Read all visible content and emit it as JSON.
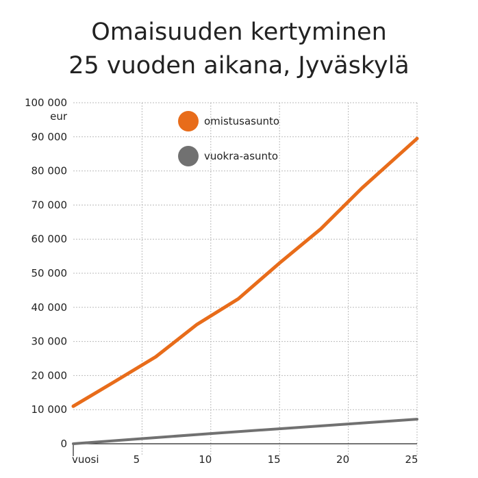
{
  "title_lines": [
    "Omaisuuden kertyminen",
    "25 vuoden aikana, Jyväskylä"
  ],
  "chart_data": {
    "type": "line",
    "title": "Omaisuuden kertyminen 25 vuoden aikana, Jyväskylä",
    "xlabel": "vuosi",
    "ylabel": "eur",
    "xlim": [
      0,
      25
    ],
    "ylim": [
      0,
      100000
    ],
    "x_ticks": [
      5,
      10,
      15,
      20,
      25
    ],
    "x_tick_labels": [
      "5",
      "10",
      "15",
      "20",
      "25"
    ],
    "y_ticks": [
      0,
      10000,
      20000,
      30000,
      40000,
      50000,
      60000,
      70000,
      80000,
      90000,
      100000
    ],
    "y_tick_labels": [
      "0",
      "10 000",
      "20 000",
      "30 000",
      "40 000",
      "50 000",
      "60 000",
      "70 000",
      "80 000",
      "90 000",
      "100 000"
    ],
    "grid": true,
    "legend_position": "top-left",
    "series": [
      {
        "name": "omistusasunto",
        "color": "#e86c1a",
        "x": [
          0,
          3,
          6,
          9,
          12,
          15,
          18,
          21,
          25
        ],
        "y": [
          11000,
          18200,
          25500,
          35000,
          42500,
          53000,
          63000,
          75000,
          89500
        ]
      },
      {
        "name": "vuokra-asunto",
        "color": "#717171",
        "x": [
          0,
          5,
          10,
          15,
          20,
          25
        ],
        "y": [
          0,
          1500,
          3000,
          4400,
          5800,
          7200
        ]
      }
    ]
  }
}
